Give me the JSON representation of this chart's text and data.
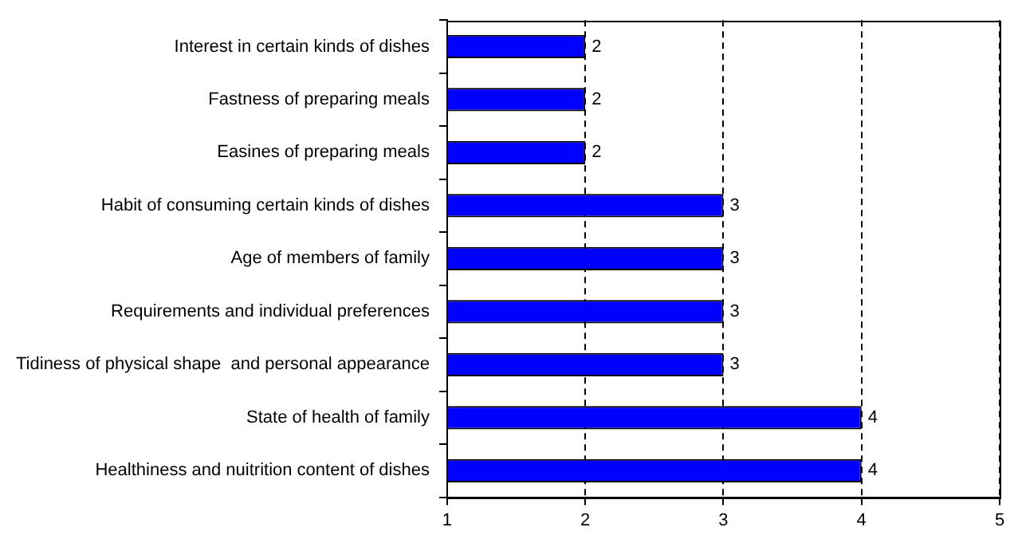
{
  "chart_data": {
    "type": "bar",
    "orientation": "horizontal",
    "categories": [
      "Interest in certain kinds of dishes",
      "Fastness of preparing meals",
      "Easines of preparing meals",
      "Habit of consuming certain kinds of dishes",
      "Age of members of family",
      "Requirements and individual preferences",
      "Tidiness of physical shape  and personal appearance",
      "State of health of family",
      "Healthiness and nuitrition content of dishes"
    ],
    "values": [
      2,
      2,
      2,
      3,
      3,
      3,
      3,
      4,
      4
    ],
    "color": "#0000ff",
    "xlim": [
      1,
      5
    ],
    "xticks": [
      1,
      2,
      3,
      4,
      5
    ],
    "grid": "x",
    "legend": false,
    "data_labels": true
  }
}
